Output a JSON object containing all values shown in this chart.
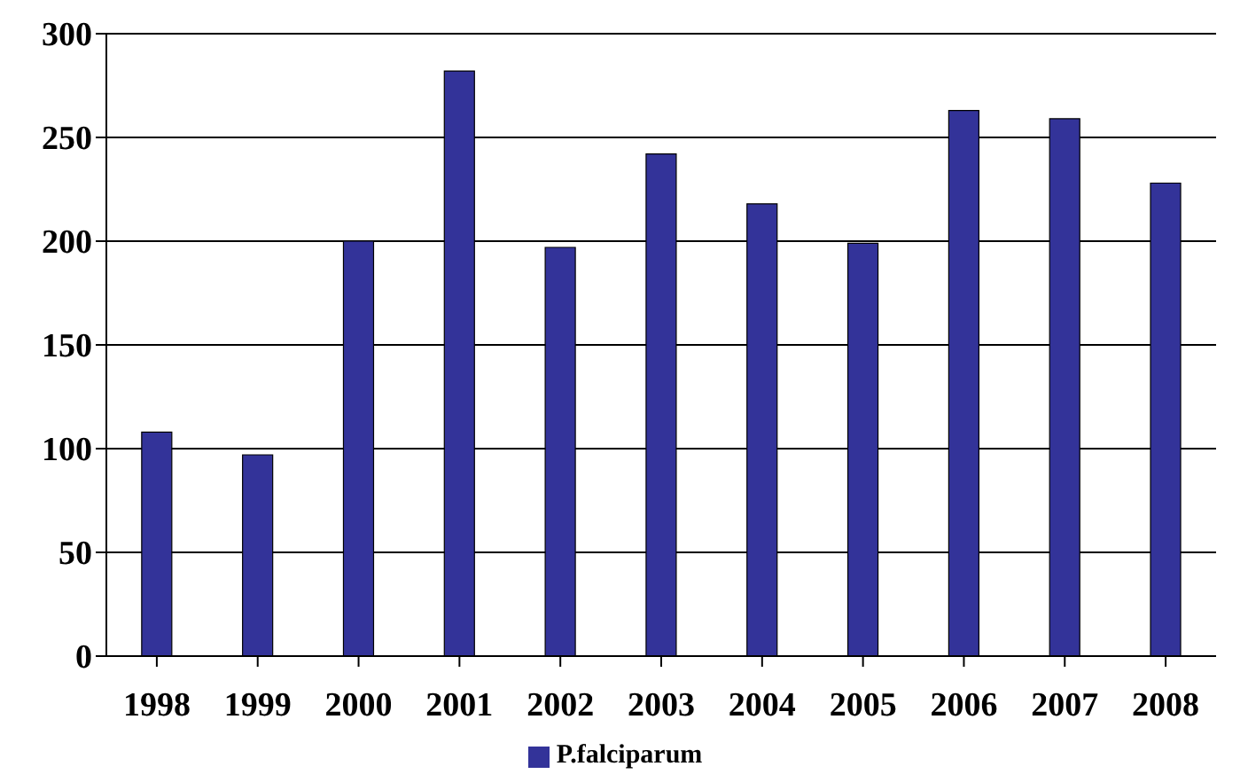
{
  "chart_data": {
    "type": "bar",
    "categories": [
      "1998",
      "1999",
      "2000",
      "2001",
      "2002",
      "2003",
      "2004",
      "2005",
      "2006",
      "2007",
      "2008"
    ],
    "series": [
      {
        "name": "P.falciparum",
        "color": "#333399",
        "values": [
          108,
          97,
          200,
          282,
          197,
          242,
          218,
          199,
          263,
          259,
          228
        ]
      }
    ],
    "ylim": [
      0,
      300
    ],
    "yticks": [
      0,
      50,
      100,
      150,
      200,
      250,
      300
    ],
    "grid": "y",
    "legend": "bottom"
  }
}
